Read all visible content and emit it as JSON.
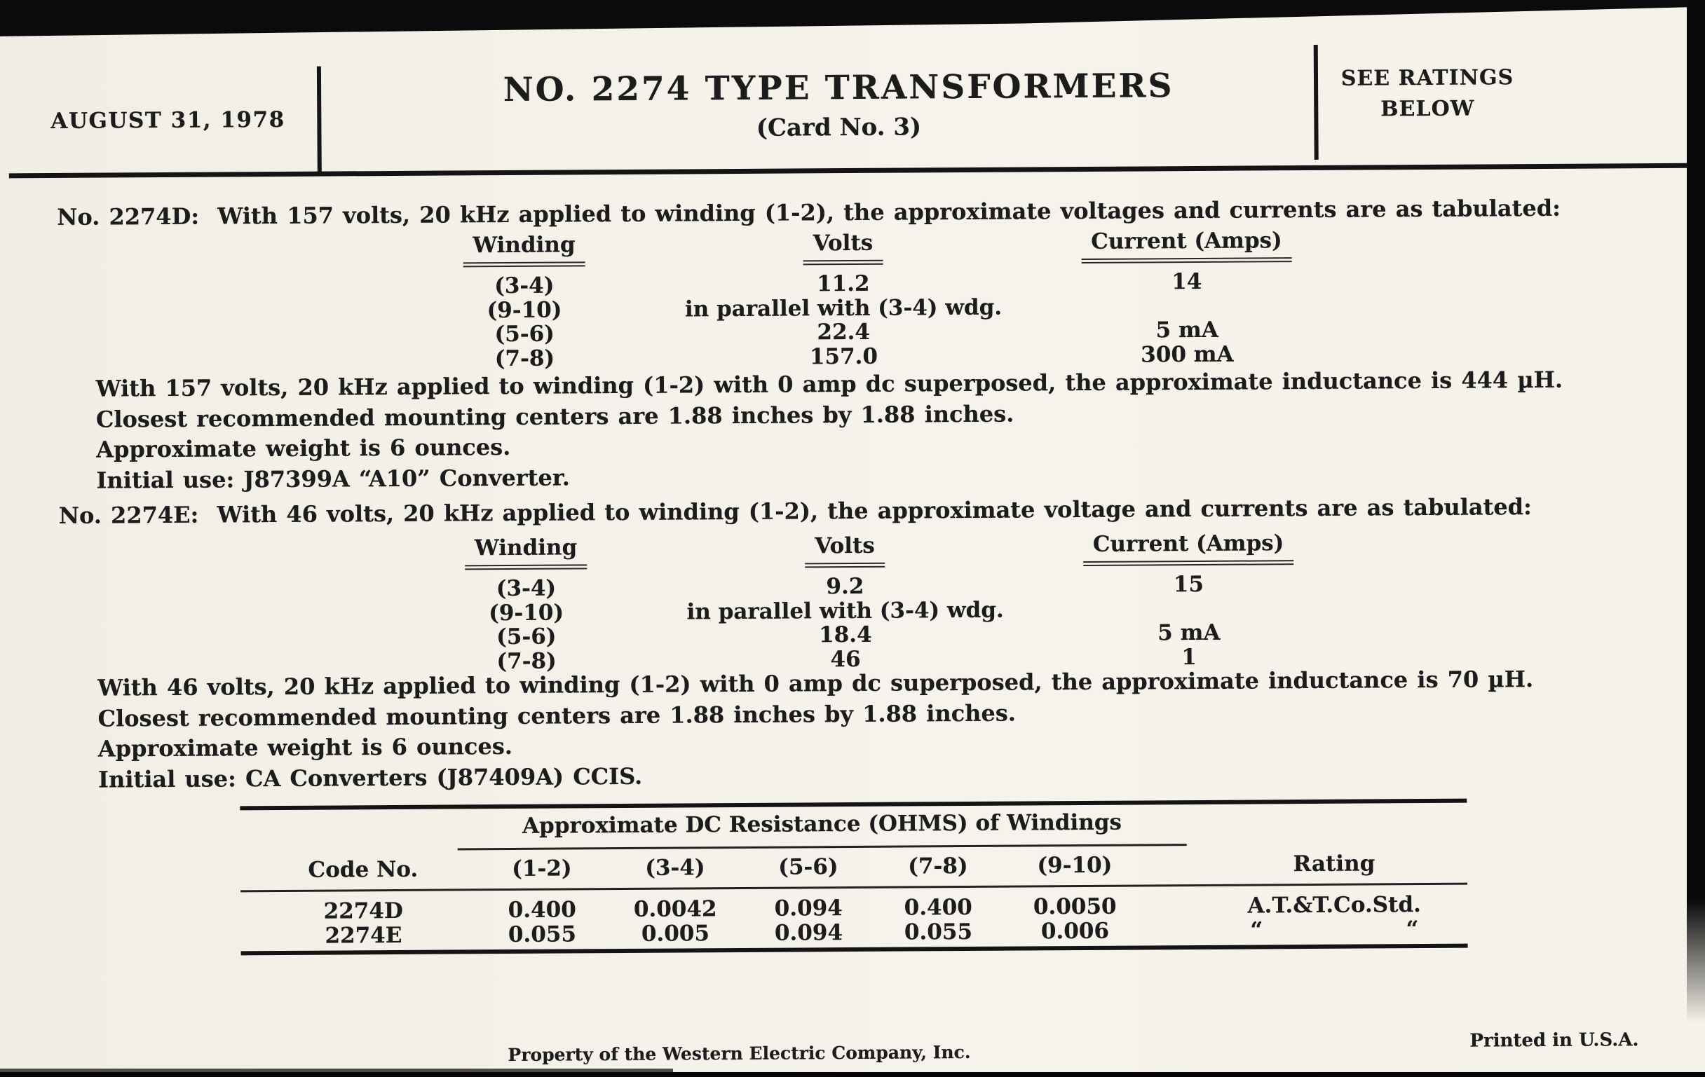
{
  "header": {
    "date": "AUGUST 31, 1978",
    "title": "NO. 2274 TYPE TRANSFORMERS",
    "subtitle": "(Card No. 3)",
    "ratings_line1": "SEE RATINGS",
    "ratings_line2": "BELOW"
  },
  "sections": [
    {
      "code": "2274D",
      "intro": "No. 2274D:  With 157 volts, 20 kHz applied to winding (1-2), the approximate voltages and currents are as tabulated:",
      "table": {
        "headers": [
          "Winding",
          "Volts",
          "Current (Amps)"
        ],
        "rows": [
          [
            "(3-4)",
            "11.2",
            "14"
          ],
          [
            "(9-10)",
            "in parallel with (3-4) wdg.",
            ""
          ],
          [
            "(5-6)",
            "22.4",
            "5 mA"
          ],
          [
            "(7-8)",
            "157.0",
            "300 mA"
          ]
        ]
      },
      "notes": [
        "With 157 volts, 20 kHz applied to winding (1-2) with 0 amp dc superposed, the approximate inductance is 444 µH.",
        "Closest recommended mounting centers are 1.88 inches by 1.88 inches.",
        "Approximate weight is 6 ounces.",
        "Initial use:  J87399A “A10” Converter."
      ]
    },
    {
      "code": "2274E",
      "intro": "No. 2274E:  With 46 volts, 20 kHz applied to winding (1-2), the approximate voltage and currents are as tabulated:",
      "table": {
        "headers": [
          "Winding",
          "Volts",
          "Current (Amps)"
        ],
        "rows": [
          [
            "(3-4)",
            "9.2",
            "15"
          ],
          [
            "(9-10)",
            "in parallel with (3-4) wdg.",
            ""
          ],
          [
            "(5-6)",
            "18.4",
            "5 mA"
          ],
          [
            "(7-8)",
            "46",
            "1"
          ]
        ]
      },
      "notes": [
        "With 46 volts, 20 kHz applied to winding (1-2) with 0 amp dc superposed, the approximate inductance is 70 µH.",
        "Closest recommended mounting centers are 1.88 inches by 1.88 inches.",
        "Approximate weight is 6 ounces.",
        "Initial use:  CA Converters (J87409A) CCIS."
      ]
    }
  ],
  "resistance_table": {
    "title": "Approximate DC Resistance (OHMS) of Windings",
    "headers": [
      "Code No.",
      "(1-2)",
      "(3-4)",
      "(5-6)",
      "(7-8)",
      "(9-10)",
      "Rating"
    ],
    "rows": [
      [
        "2274D",
        "0.400",
        "0.0042",
        "0.094",
        "0.400",
        "0.0050",
        "A.T.&T.Co.Std."
      ],
      [
        "2274E",
        "0.055",
        "0.005",
        "0.094",
        "0.055",
        "0.006",
        [
          "“",
          "“"
        ]
      ]
    ]
  },
  "footer": {
    "property": "Property of the Western Electric Company, Inc.",
    "printed": "Printed in U.S.A."
  }
}
